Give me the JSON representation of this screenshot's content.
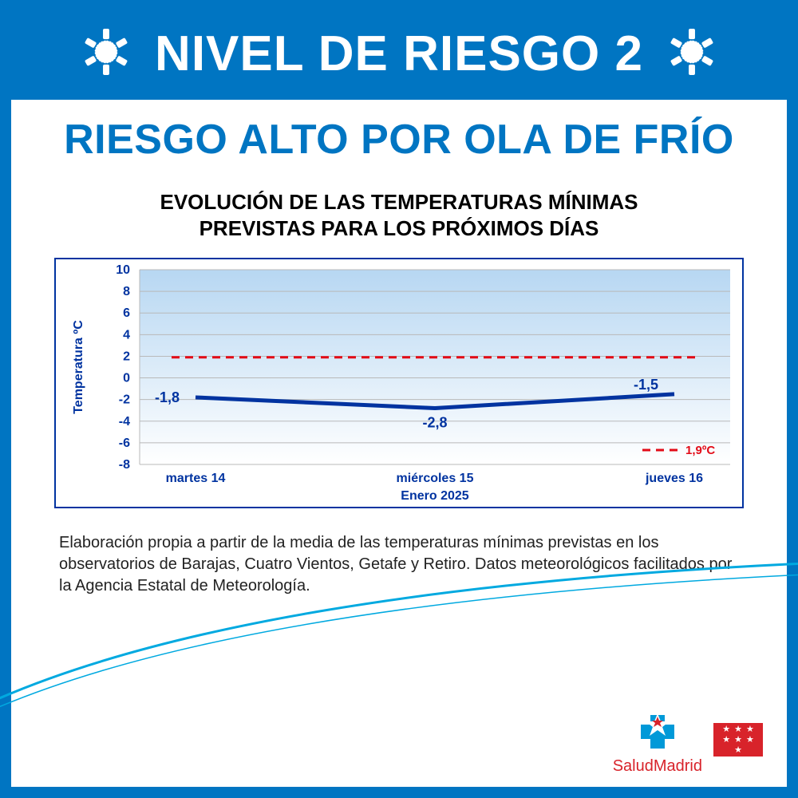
{
  "banner": {
    "title": "NIVEL DE RIESGO 2"
  },
  "subtitle": "RIESGO ALTO POR OLA DE FRÍO",
  "chart": {
    "type": "line",
    "title_line1": "EVOLUCIÓN DE LAS TEMPERATURAS MÍNIMAS",
    "title_line2": "PREVISTAS PARA LOS PRÓXIMOS DÍAS",
    "ylabel": "Temperatura ºC",
    "xlabel": "Enero 2025",
    "y_ticks": [
      10,
      8,
      6,
      4,
      2,
      0,
      -2,
      -4,
      -6,
      -8
    ],
    "ymin": -8,
    "ymax": 10,
    "categories": [
      "martes 14",
      "miércoles 15",
      "jueves 16"
    ],
    "values": [
      -1.8,
      -2.8,
      -1.5
    ],
    "value_labels": [
      "-1,8",
      "-2,8",
      "-1,5"
    ],
    "threshold_value": 1.9,
    "threshold_label": "1,9ºC",
    "colors": {
      "border": "#0033a0",
      "plot_bg_top": "#b7d7f2",
      "plot_bg_bottom": "#ffffff",
      "grid": "#b9b9b9",
      "axis_text": "#0033a0",
      "line": "#0033a0",
      "threshold": "#e30b17",
      "tick_label": "#0033a0"
    },
    "line_width": 5,
    "threshold_dash": "10,7",
    "tick_fontsize": 16,
    "label_fontsize": 16,
    "value_fontsize": 18,
    "axis_title_fontsize": 16
  },
  "footnote": "Elaboración propia a partir de la media de las temperaturas mínimas previstas en los observatorios de Barajas, Cuatro Vientos, Getafe y Retiro. Datos meteorológicos facilitados por la Agencia Estatal de Meteorología.",
  "logos": {
    "salud_text": "SaludMadrid"
  }
}
